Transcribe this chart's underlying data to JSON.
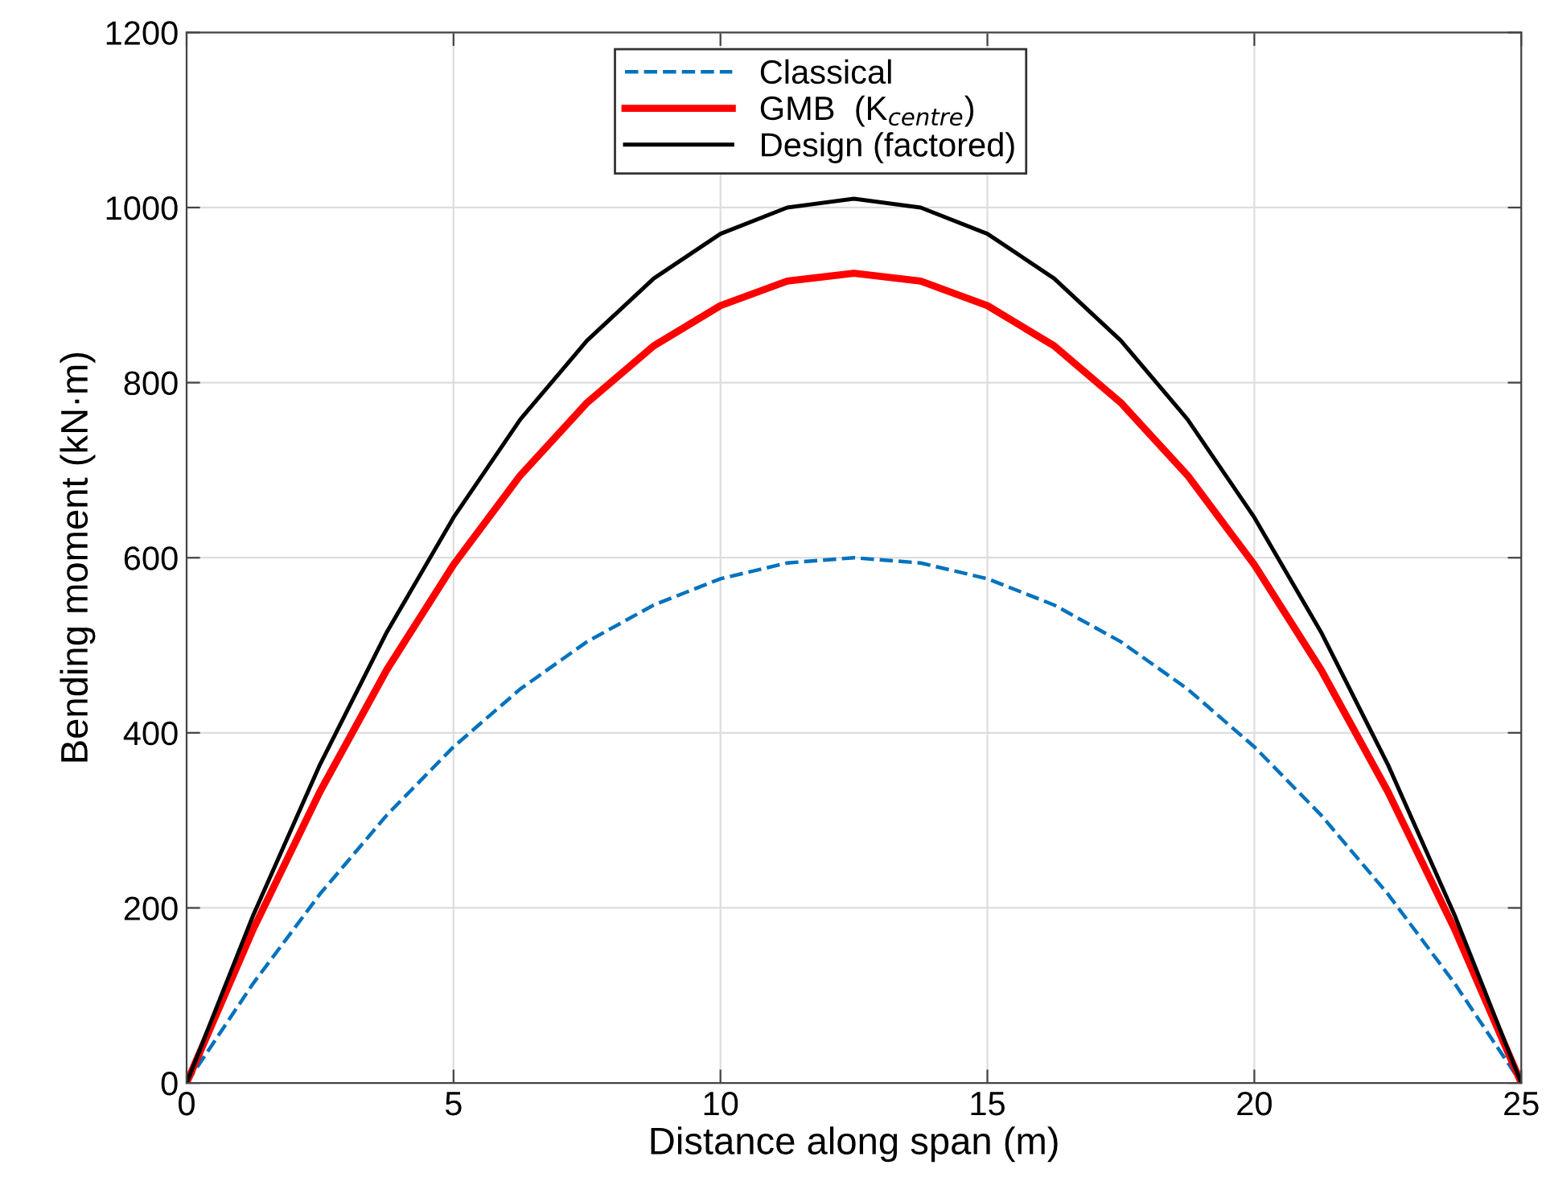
{
  "chart_data": {
    "type": "line",
    "xlabel": "Distance along span (m)",
    "ylabel": "Bending moment (kN·m)",
    "x": [
      0,
      1.25,
      2.5,
      3.75,
      5,
      6.25,
      7.5,
      8.75,
      10,
      11.25,
      12.5,
      13.75,
      15,
      16.25,
      17.5,
      18.75,
      20,
      21.25,
      22.5,
      23.75,
      25
    ],
    "series": [
      {
        "name": "Classical",
        "color": "#0072bd",
        "line_style": "dashed",
        "values": [
          0,
          114,
          216,
          306,
          384,
          450,
          504,
          546,
          576,
          594,
          600,
          594,
          576,
          546,
          504,
          450,
          384,
          306,
          216,
          114,
          0
        ]
      },
      {
        "name": "GMB  (K$_{centre}$)",
        "color": "#ff0000",
        "line_style": "solid",
        "values": [
          0,
          176,
          333,
          472,
          592,
          694,
          777,
          842,
          888,
          916,
          925,
          916,
          888,
          842,
          777,
          694,
          592,
          472,
          333,
          176,
          0
        ]
      },
      {
        "name": "Design (factored)",
        "color": "#000000",
        "line_style": "solid",
        "values": [
          0,
          192,
          364,
          515,
          646,
          758,
          848,
          919,
          970,
          1000,
          1010,
          1000,
          970,
          919,
          848,
          758,
          646,
          515,
          364,
          192,
          0
        ]
      }
    ],
    "xlim": [
      0,
      25
    ],
    "ylim": [
      0,
      1200
    ],
    "xticks": [
      0,
      5,
      10,
      15,
      20,
      25
    ],
    "yticks": [
      0,
      200,
      400,
      600,
      800,
      1000,
      1200
    ],
    "grid": true,
    "legend": "top",
    "marker": "none"
  }
}
